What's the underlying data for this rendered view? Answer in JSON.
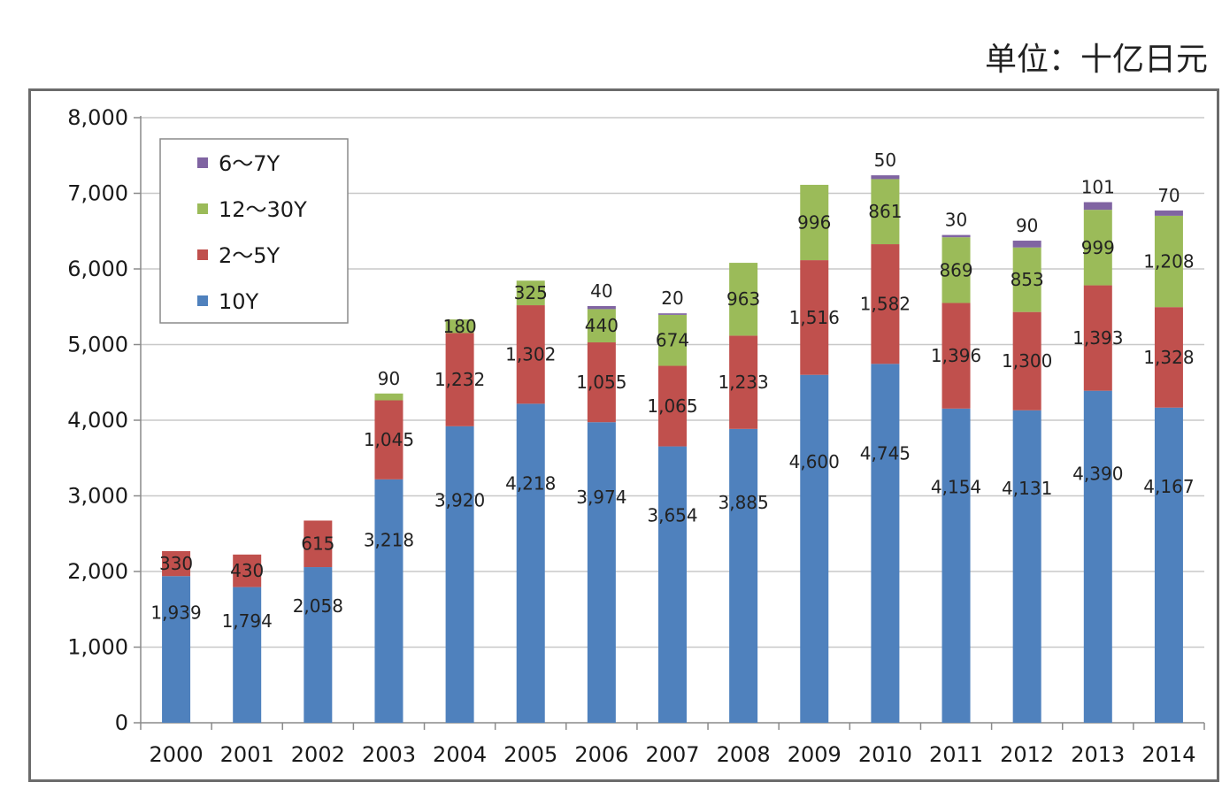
{
  "unit_label": "单位：十亿日元",
  "chart_data": {
    "type": "bar",
    "stacked": true,
    "categories": [
      "2000",
      "2001",
      "2002",
      "2003",
      "2004",
      "2005",
      "2006",
      "2007",
      "2008",
      "2009",
      "2010",
      "2011",
      "2012",
      "2013",
      "2014"
    ],
    "ylim": [
      0,
      8000
    ],
    "yticks": [
      "0",
      "1,000",
      "2,000",
      "3,000",
      "4,000",
      "5,000",
      "6,000",
      "7,000",
      "8,000"
    ],
    "ytick_values": [
      0,
      1000,
      2000,
      3000,
      4000,
      5000,
      6000,
      7000,
      8000
    ],
    "grid": true,
    "legend_position": "top-left",
    "series": [
      {
        "name": "10Y",
        "color": "#4f81bd",
        "values": [
          1939,
          1794,
          2058,
          3218,
          3920,
          4218,
          3974,
          3654,
          3885,
          4600,
          4745,
          4154,
          4131,
          4390,
          4167
        ],
        "labels": [
          "1,939",
          "1,794",
          "2,058",
          "3,218",
          "3,920",
          "4,218",
          "3,974",
          "3,654",
          "3,885",
          "4,600",
          "4,745",
          "4,154",
          "4,131",
          "4,390",
          "4,167"
        ]
      },
      {
        "name": "2～5Y",
        "color": "#c0504d",
        "values": [
          330,
          430,
          615,
          1045,
          1232,
          1302,
          1055,
          1065,
          1233,
          1516,
          1582,
          1396,
          1300,
          1393,
          1328
        ],
        "labels": [
          "330",
          "430",
          "615",
          "1,045",
          "1,232",
          "1,302",
          "1,055",
          "1,065",
          "1,233",
          "1,516",
          "1,582",
          "1,396",
          "1,300",
          "1,393",
          "1,328"
        ]
      },
      {
        "name": "12～30Y",
        "color": "#9bbb59",
        "values": [
          0,
          0,
          0,
          90,
          180,
          325,
          440,
          674,
          963,
          996,
          861,
          869,
          853,
          999,
          1208
        ],
        "labels": [
          "",
          "",
          "",
          "90",
          "180",
          "325",
          "440",
          "674",
          "963",
          "996",
          "861",
          "869",
          "853",
          "999",
          "1,208"
        ]
      },
      {
        "name": "6～7Y",
        "color": "#8064a2",
        "values": [
          0,
          0,
          0,
          0,
          0,
          0,
          40,
          20,
          0,
          0,
          50,
          30,
          90,
          101,
          70
        ],
        "labels": [
          "",
          "",
          "",
          "",
          "",
          "",
          "40",
          "20",
          "",
          "",
          "50",
          "30",
          "90",
          "101",
          "70"
        ]
      }
    ],
    "legend_order": [
      "6～7Y",
      "12～30Y",
      "2～5Y",
      "10Y"
    ]
  }
}
